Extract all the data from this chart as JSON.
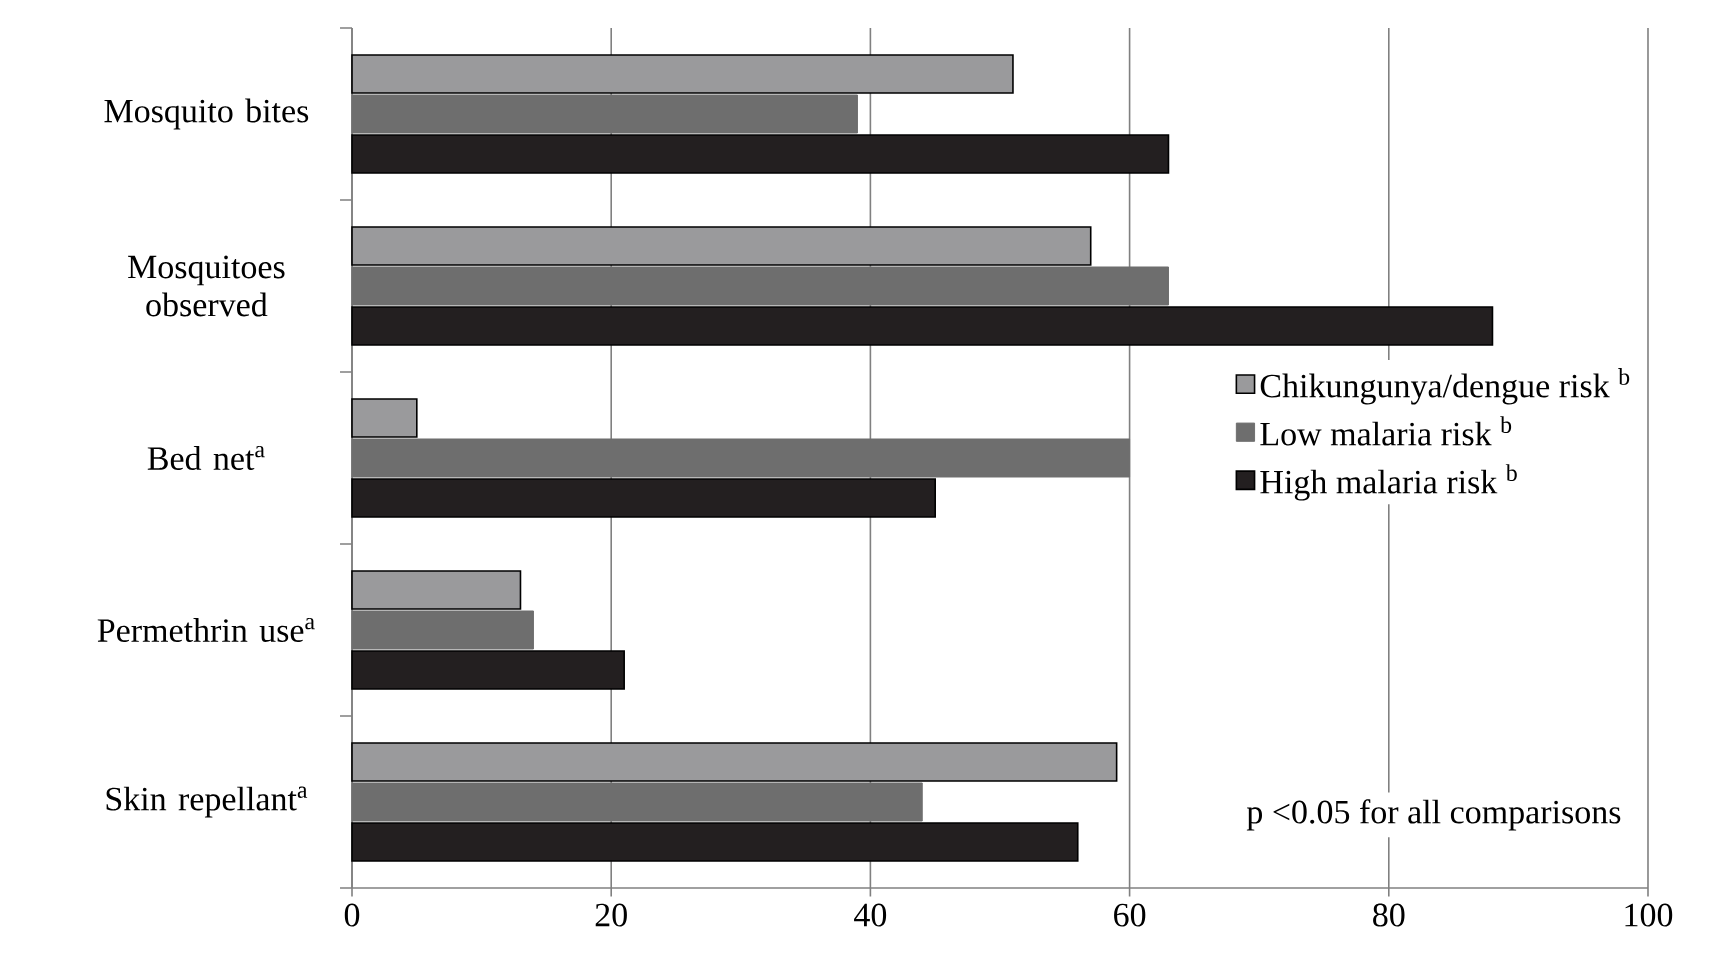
{
  "chart_data": {
    "type": "bar",
    "orientation": "horizontal",
    "categories": [
      "Mosquito bites",
      "Mosquitoes observed",
      "Bed net$^{a}$",
      "Permethrin use$^{a}$",
      "Skin repellant$^{a}$"
    ],
    "series": [
      {
        "name": "Chikungunya/dengue risk $^{b}$",
        "color": "#9a9a9c",
        "values": [
          51,
          57,
          5,
          13,
          59
        ]
      },
      {
        "name": "Low malaria risk $^{b}$",
        "color": "#6e6e6e",
        "values": [
          39,
          63,
          60,
          14,
          44
        ]
      },
      {
        "name": "High malaria risk $^{b}$",
        "color": "#231f20",
        "values": [
          63,
          88,
          45,
          21,
          56
        ]
      }
    ],
    "xlim": [
      0,
      100
    ],
    "xticks": [
      0,
      20,
      40,
      60,
      80,
      100
    ],
    "grid": "x",
    "legend": "right",
    "annotations": [
      "p <0.05 for all comparisons"
    ]
  }
}
